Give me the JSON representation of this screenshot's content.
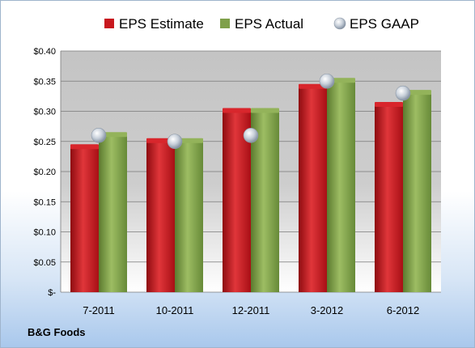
{
  "chart_data": {
    "type": "bar",
    "categories": [
      "7-2011",
      "10-2011",
      "12-2011",
      "3-2012",
      "6-2012"
    ],
    "series": [
      {
        "name": "EPS Estimate",
        "kind": "bar",
        "values": [
          0.24,
          0.25,
          0.3,
          0.34,
          0.31
        ]
      },
      {
        "name": "EPS Actual",
        "kind": "bar",
        "values": [
          0.26,
          0.25,
          0.3,
          0.35,
          0.33
        ]
      },
      {
        "name": "EPS GAAP",
        "kind": "marker",
        "values": [
          0.26,
          0.25,
          0.26,
          0.35,
          0.33
        ]
      }
    ],
    "ylim": [
      0,
      0.4
    ],
    "yticks": [
      0,
      0.05,
      0.1,
      0.15,
      0.2,
      0.25,
      0.3,
      0.35,
      0.4
    ],
    "ytick_labels": [
      "$-",
      "$0.05",
      "$0.10",
      "$0.15",
      "$0.20",
      "$0.25",
      "$0.30",
      "$0.35",
      "$0.40"
    ],
    "grid": true,
    "legend_position": "top"
  },
  "colors": {
    "estimate": "#c0161c",
    "actual": "#7fa04a",
    "gaap": "#b8c4d2"
  },
  "footer": {
    "company": "B&G Foods"
  }
}
